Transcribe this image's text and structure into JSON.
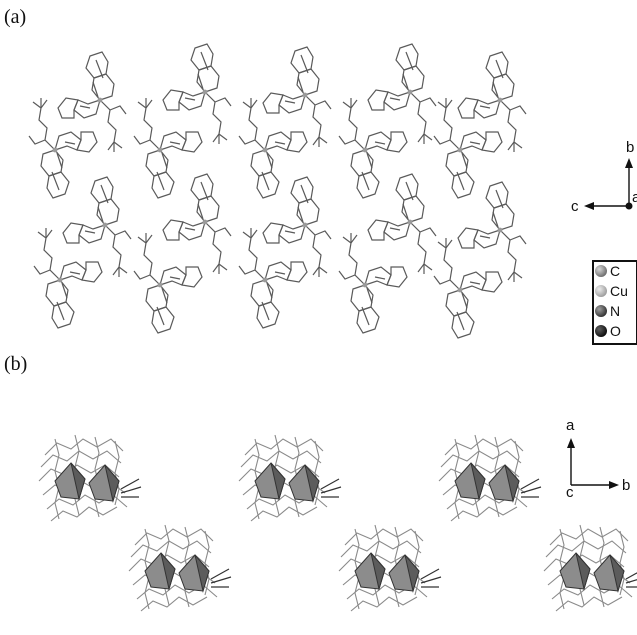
{
  "panels": {
    "a": {
      "label": "(a)"
    },
    "b": {
      "label": "(b)"
    }
  },
  "axes_a": {
    "b": "b",
    "c": "c",
    "a": "a"
  },
  "axes_b": {
    "a": "a",
    "b": "b",
    "c": "c"
  },
  "legend": {
    "items": [
      {
        "label": "C",
        "color": "#7a7a7a"
      },
      {
        "label": "Cu",
        "color": "#a6a6a6"
      },
      {
        "label": "N",
        "color": "#3d3d3d"
      },
      {
        "label": "O",
        "color": "#141414"
      }
    ]
  },
  "colors": {
    "bond": "#555555",
    "polyhedron_dark": "#5c5c5c",
    "polyhedron_light": "#8c8c8c"
  }
}
